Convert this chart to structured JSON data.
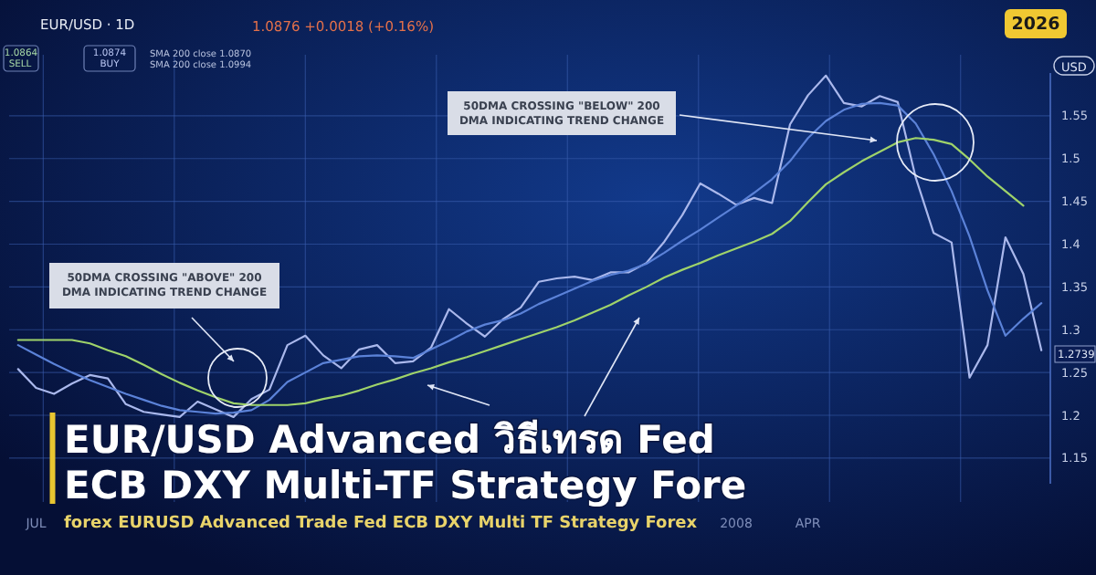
{
  "chart_data": {
    "type": "line",
    "title": "EUR/USD Advanced วิธีเทรด Fed ECB DXY Multi-TF Strategy Fore",
    "subtitle": "forex EURUSD Advanced Trade Fed ECB DXY Multi TF Strategy Forex",
    "ylabel": "USD",
    "categories": [
      null,
      "JUL",
      null,
      null,
      null,
      null,
      null,
      null,
      null,
      null,
      null,
      null,
      null,
      null,
      null,
      null,
      null,
      null,
      null,
      null,
      null,
      null,
      null,
      null,
      null,
      null,
      null,
      null,
      null,
      null,
      null,
      null,
      null,
      null,
      null,
      null,
      null,
      null,
      null,
      null,
      "2008",
      null,
      null,
      null,
      "APR",
      null,
      null,
      null,
      null,
      null,
      null,
      null,
      null,
      null,
      null,
      null,
      null,
      null
    ],
    "ylim": [
      1.12,
      1.6
    ],
    "yticks": [
      1.15,
      1.2,
      1.25,
      1.3,
      1.35,
      1.4,
      1.45,
      1.5,
      1.55
    ],
    "grid": true,
    "series": [
      {
        "color": "#aab8ec",
        "values": [
          1.254,
          1.232,
          1.225,
          1.237,
          1.247,
          1.243,
          1.213,
          1.204,
          1.201,
          1.198,
          1.216,
          1.207,
          1.198,
          1.219,
          1.23,
          1.282,
          1.293,
          1.27,
          1.255,
          1.277,
          1.282,
          1.261,
          1.263,
          1.279,
          1.324,
          1.307,
          1.292,
          1.312,
          1.326,
          1.356,
          1.36,
          1.362,
          1.358,
          1.367,
          1.367,
          1.378,
          1.403,
          1.434,
          1.471,
          1.459,
          1.446,
          1.454,
          1.448,
          1.54,
          1.574,
          1.597,
          1.565,
          1.561,
          1.573,
          1.566,
          1.478,
          1.413,
          1.402,
          1.244,
          1.282,
          1.408,
          1.365,
          1.276
        ]
      },
      {
        "color": "#5b82d8",
        "values": [
          1.282,
          1.271,
          1.26,
          1.25,
          1.241,
          1.233,
          1.225,
          1.218,
          1.211,
          1.206,
          1.204,
          1.202,
          1.203,
          1.206,
          1.218,
          1.239,
          1.25,
          1.261,
          1.265,
          1.269,
          1.27,
          1.269,
          1.267,
          1.277,
          1.287,
          1.298,
          1.306,
          1.311,
          1.319,
          1.33,
          1.339,
          1.348,
          1.357,
          1.364,
          1.369,
          1.377,
          1.39,
          1.404,
          1.417,
          1.431,
          1.445,
          1.46,
          1.476,
          1.497,
          1.524,
          1.544,
          1.557,
          1.564,
          1.565,
          1.562,
          1.541,
          1.505,
          1.462,
          1.409,
          1.346,
          1.293,
          1.313,
          1.331
        ]
      },
      {
        "color": "#9fd36a",
        "values": [
          1.288,
          1.288,
          1.288,
          1.288,
          1.284,
          1.276,
          1.269,
          1.259,
          1.248,
          1.238,
          1.229,
          1.221,
          1.214,
          1.212,
          1.212,
          1.212,
          1.214,
          1.219,
          1.223,
          1.229,
          1.236,
          1.242,
          1.249,
          1.255,
          1.262,
          1.268,
          1.275,
          1.282,
          1.289,
          1.296,
          1.303,
          1.311,
          1.32,
          1.329,
          1.34,
          1.35,
          1.361,
          1.37,
          1.378,
          1.387,
          1.395,
          1.403,
          1.412,
          1.427,
          1.449,
          1.47,
          1.484,
          1.497,
          1.508,
          1.519,
          1.524,
          1.522,
          1.517,
          1.499,
          1.479,
          1.462,
          1.445,
          null
        ]
      }
    ],
    "annotations": [
      "50DMA CROSSING \"ABOVE\" 200 DMA INDICATING TREND CHANGE",
      "50DMA CROSSING \"BELOW\" 200 DMA INDICATING TREND CHANGE",
      "1.2739",
      "EUR/USD · 1D",
      "1.0876 +0.0018 (+0.16%)",
      "1.0864",
      "SELL",
      "1.0874",
      "BUY",
      "SMA 200 close 1.0870",
      "SMA 200 close 1.0994",
      "2026"
    ]
  }
}
